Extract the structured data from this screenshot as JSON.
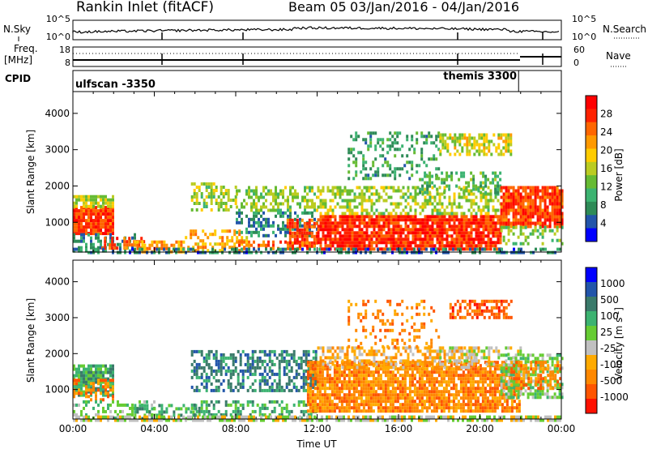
{
  "header": {
    "station": "Rankin Inlet (fitACF)",
    "beam": "Beam 05",
    "date_range": "03/Jan/2016 - 04/Jan/2016"
  },
  "labels": {
    "nsky": "N.Sky",
    "nsearch": "N.Search",
    "freq": "Freq.",
    "mhz": "[MHz]",
    "nave": "Nave",
    "cpid": "CPID"
  },
  "strip_ticks": {
    "nsky_top": "10^5",
    "nsky_bottom": "10^0",
    "nsearch_top": "10^5",
    "nsearch_bottom": "10^0",
    "freq_top": "18",
    "freq_bottom": "8",
    "nave_top": "60",
    "nave_bottom": "0"
  },
  "cpid": {
    "left_program": "ulfscan -3350",
    "right_program": "themis 3300",
    "switch_time_hours": 21.9
  },
  "colors": {
    "power": [
      "#0000ff",
      "#2255aa",
      "#2e8b57",
      "#3cb371",
      "#66bb33",
      "#bbcc22",
      "#ffcc00",
      "#ff9900",
      "#ff6600",
      "#ff2200",
      "#ff0000"
    ],
    "velocity": [
      "#0000ff",
      "#2255aa",
      "#3a7a6a",
      "#3cb371",
      "#66cc33",
      "#c0c0c0",
      "#ffaa00",
      "#ff8800",
      "#ff5500",
      "#ff1100"
    ]
  },
  "chart_data": [
    {
      "type": "heatmap",
      "name_ref": "power",
      "xlabel": "",
      "ylabel": "Slant Range [km]",
      "xlim": [
        0,
        24
      ],
      "ylim": [
        180,
        4600
      ],
      "yticks": [
        "1000",
        "2000",
        "3000",
        "4000"
      ],
      "colorbar_label": "Power [dB]",
      "colorbar_ticks": [
        "4",
        "8",
        "12",
        "16",
        "20",
        "24",
        "28"
      ],
      "colorbar_range": [
        0,
        30
      ],
      "patches": [
        {
          "t0": 0.0,
          "t1": 2.0,
          "r0": 700,
          "r1": 1450,
          "v": 26,
          "d": 0.95
        },
        {
          "t0": 0.0,
          "t1": 2.0,
          "r0": 1450,
          "r1": 1750,
          "v": 15,
          "d": 0.8
        },
        {
          "t0": 0.0,
          "t1": 3.0,
          "r0": 200,
          "r1": 700,
          "v": 6,
          "d": 0.45
        },
        {
          "t0": 1.4,
          "t1": 3.5,
          "r0": 250,
          "r1": 600,
          "v": 25,
          "d": 0.5
        },
        {
          "t0": 3.0,
          "t1": 5.5,
          "r0": 200,
          "r1": 500,
          "v": 22,
          "d": 0.6
        },
        {
          "t0": 5.5,
          "t1": 8.5,
          "r0": 200,
          "r1": 800,
          "v": 20,
          "d": 0.5
        },
        {
          "t0": 5.8,
          "t1": 8.0,
          "r0": 1300,
          "r1": 2100,
          "v": 14,
          "d": 0.5
        },
        {
          "t0": 8.0,
          "t1": 12.0,
          "r0": 600,
          "r1": 1300,
          "v": 6,
          "d": 0.4
        },
        {
          "t0": 8.0,
          "t1": 12.0,
          "r0": 1300,
          "r1": 2000,
          "v": 13,
          "d": 0.5
        },
        {
          "t0": 8.0,
          "t1": 12.0,
          "r0": 300,
          "r1": 500,
          "v": 24,
          "d": 0.5
        },
        {
          "t0": 10.5,
          "t1": 12.0,
          "r0": 300,
          "r1": 1100,
          "v": 25,
          "d": 0.7
        },
        {
          "t0": 12.0,
          "t1": 21.0,
          "r0": 300,
          "r1": 1200,
          "v": 27,
          "d": 0.9
        },
        {
          "t0": 12.0,
          "t1": 21.0,
          "r0": 1200,
          "r1": 2000,
          "v": 14,
          "d": 0.5
        },
        {
          "t0": 13.5,
          "t1": 18.0,
          "r0": 2200,
          "r1": 3500,
          "v": 8,
          "d": 0.3
        },
        {
          "t0": 18.0,
          "t1": 21.5,
          "r0": 2900,
          "r1": 3450,
          "v": 16,
          "d": 0.6
        },
        {
          "t0": 17.0,
          "t1": 21.0,
          "r0": 1800,
          "r1": 2400,
          "v": 10,
          "d": 0.35
        },
        {
          "t0": 21.0,
          "t1": 24.0,
          "r0": 900,
          "r1": 2000,
          "v": 26,
          "d": 0.85
        },
        {
          "t0": 21.0,
          "t1": 24.0,
          "r0": 400,
          "r1": 900,
          "v": 12,
          "d": 0.4
        },
        {
          "t0": 0.0,
          "t1": 24.0,
          "r0": 180,
          "r1": 300,
          "v": 5,
          "d": 0.5
        }
      ]
    },
    {
      "type": "heatmap",
      "name_ref": "velocity",
      "xlabel": "Time UT",
      "ylabel": "Slant Range [km]",
      "xlim": [
        0,
        24
      ],
      "ylim": [
        180,
        4600
      ],
      "xticks": [
        "00:00",
        "04:00",
        "08:00",
        "12:00",
        "16:00",
        "20:00",
        "00:00"
      ],
      "yticks": [
        "1000",
        "2000",
        "3000",
        "4000"
      ],
      "colorbar_label": "Velocity [m s^-1]",
      "colorbar_ticks": [
        "1000",
        "500",
        "100",
        "25",
        "-25",
        "-100",
        "-500",
        "-1000"
      ],
      "patches": [
        {
          "t0": 0.0,
          "t1": 2.0,
          "r0": 800,
          "r1": 1700,
          "v": 3,
          "d": 0.85
        },
        {
          "t0": 0.0,
          "t1": 2.0,
          "r0": 700,
          "r1": 1300,
          "v": 7,
          "d": 0.4
        },
        {
          "t0": 0.0,
          "t1": 4.0,
          "r0": 200,
          "r1": 700,
          "v": 4,
          "d": 0.35
        },
        {
          "t0": 3.0,
          "t1": 6.0,
          "r0": 200,
          "r1": 600,
          "v": 3,
          "d": 0.5
        },
        {
          "t0": 5.8,
          "t1": 12.0,
          "r0": 1000,
          "r1": 2100,
          "v": 2,
          "d": 0.55
        },
        {
          "t0": 5.8,
          "t1": 12.0,
          "r0": 200,
          "r1": 700,
          "v": 3,
          "d": 0.4
        },
        {
          "t0": 11.5,
          "t1": 22.0,
          "r0": 400,
          "r1": 1800,
          "v": 7,
          "d": 0.85
        },
        {
          "t0": 12.0,
          "t1": 20.0,
          "r0": 1600,
          "r1": 2200,
          "v": 6,
          "d": 0.55
        },
        {
          "t0": 13.5,
          "t1": 18.0,
          "r0": 2200,
          "r1": 3500,
          "v": 7,
          "d": 0.2
        },
        {
          "t0": 18.5,
          "t1": 21.5,
          "r0": 3000,
          "r1": 3500,
          "v": 8,
          "d": 0.6
        },
        {
          "t0": 18.0,
          "t1": 22.0,
          "r0": 1700,
          "r1": 2200,
          "v": 5,
          "d": 0.4
        },
        {
          "t0": 21.0,
          "t1": 24.0,
          "r0": 800,
          "r1": 2000,
          "v": 4,
          "d": 0.6
        },
        {
          "t0": 21.5,
          "t1": 24.0,
          "r0": 1000,
          "r1": 1800,
          "v": 7,
          "d": 0.5
        },
        {
          "t0": 0.0,
          "t1": 24.0,
          "r0": 180,
          "r1": 280,
          "v": 5,
          "d": 0.7
        }
      ]
    }
  ]
}
